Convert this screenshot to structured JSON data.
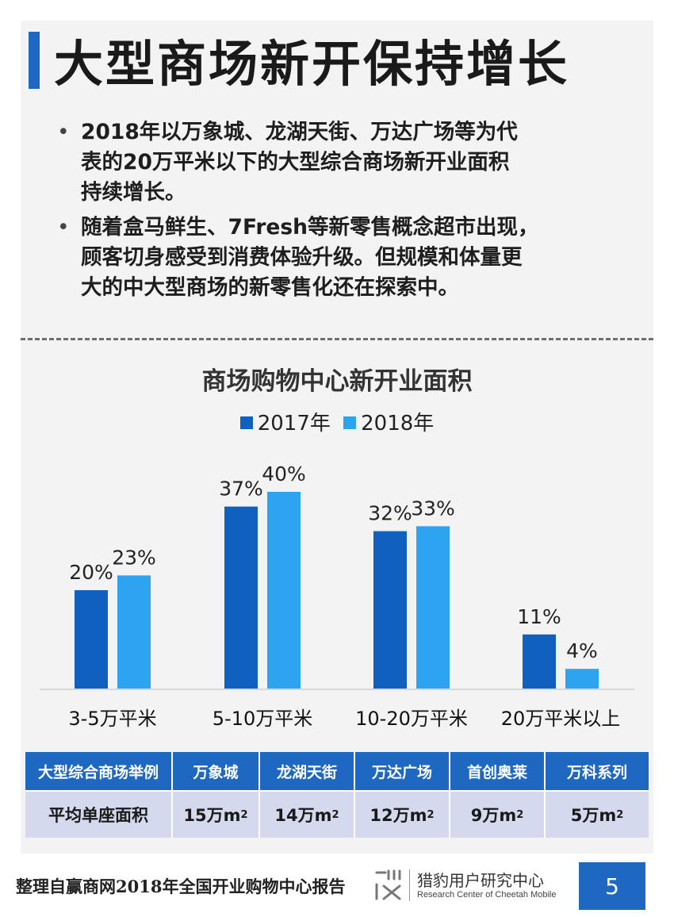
{
  "title": "大型商场新开保持增长",
  "bullets": [
    {
      "lines": [
        "2018年以万象城、龙湖天街、万达广场等为代",
        "表的20万平米以下的大型综合商场新开业面积",
        "持续增长。"
      ]
    },
    {
      "lines": [
        "随着盒马鲜生、7Fresh等新零售概念超市出现，",
        "顾客切身感受到消费体验升级。但规模和体量更",
        "大的中大型商场的新零售化还在探索中。"
      ]
    }
  ],
  "chart_data": {
    "type": "bar",
    "title": "商场购物中心新开业面积",
    "categories": [
      "3-5万平米",
      "5-10万平米",
      "10-20万平米",
      "20万平米以上"
    ],
    "series": [
      {
        "name": "2017年",
        "values": [
          20,
          37,
          32,
          11
        ],
        "labels": [
          "20%",
          "37%",
          "32%",
          "11%"
        ],
        "color": "#1060c0"
      },
      {
        "name": "2018年",
        "values": [
          23,
          40,
          33,
          4
        ],
        "labels": [
          "23%",
          "40%",
          "33%",
          "4%"
        ],
        "color": "#2ea3ef"
      }
    ],
    "unit": "%",
    "ylim": [
      0,
      40
    ],
    "legend_position": "top-center",
    "grid": false
  },
  "table": {
    "header": [
      "大型综合商场举例",
      "万象城",
      "龙湖天街",
      "万达广场",
      "首创奥莱",
      "万科系列"
    ],
    "row_label": "平均单座面积",
    "row": [
      {
        "value": "15万m",
        "sup": "2"
      },
      {
        "value": "14万m",
        "sup": "2"
      },
      {
        "value": "12万m",
        "sup": "2"
      },
      {
        "value": "9万m",
        "sup": "2"
      },
      {
        "value": "5万m",
        "sup": "2"
      }
    ]
  },
  "footer": {
    "source": "整理自赢商网2018年全国开业购物中心报告",
    "logo_cn": "猎豹用户研究中心",
    "logo_en": "Research Center of Cheetah Mobile",
    "page": "5"
  },
  "colors": {
    "accent": "#1f68c1",
    "panel": "#f3f3f3",
    "table_body": "#d5d9ee"
  },
  "icons": {
    "logo": "cheetah-research-logo-icon"
  }
}
